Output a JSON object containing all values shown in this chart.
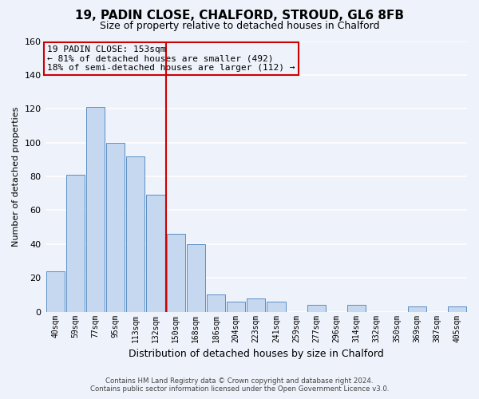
{
  "title": "19, PADIN CLOSE, CHALFORD, STROUD, GL6 8FB",
  "subtitle": "Size of property relative to detached houses in Chalford",
  "xlabel": "Distribution of detached houses by size in Chalford",
  "ylabel": "Number of detached properties",
  "bar_labels": [
    "40sqm",
    "59sqm",
    "77sqm",
    "95sqm",
    "113sqm",
    "132sqm",
    "150sqm",
    "168sqm",
    "186sqm",
    "204sqm",
    "223sqm",
    "241sqm",
    "259sqm",
    "277sqm",
    "296sqm",
    "314sqm",
    "332sqm",
    "350sqm",
    "369sqm",
    "387sqm",
    "405sqm"
  ],
  "bar_heights": [
    24,
    81,
    121,
    100,
    92,
    69,
    46,
    40,
    10,
    6,
    8,
    6,
    0,
    4,
    0,
    4,
    0,
    0,
    3,
    0,
    3
  ],
  "bar_color": "#c5d8f0",
  "bar_edge_color": "#5b8ec4",
  "vline_index": 6,
  "vline_color": "#cc0000",
  "ylim": [
    0,
    160
  ],
  "yticks": [
    0,
    20,
    40,
    60,
    80,
    100,
    120,
    140,
    160
  ],
  "annotation_line1": "19 PADIN CLOSE: 153sqm",
  "annotation_line2": "← 81% of detached houses are smaller (492)",
  "annotation_line3": "18% of semi-detached houses are larger (112) →",
  "annotation_box_color": "#cc0000",
  "background_color": "#eef2fa",
  "grid_color": "#ffffff",
  "footer_line1": "Contains HM Land Registry data © Crown copyright and database right 2024.",
  "footer_line2": "Contains public sector information licensed under the Open Government Licence v3.0."
}
